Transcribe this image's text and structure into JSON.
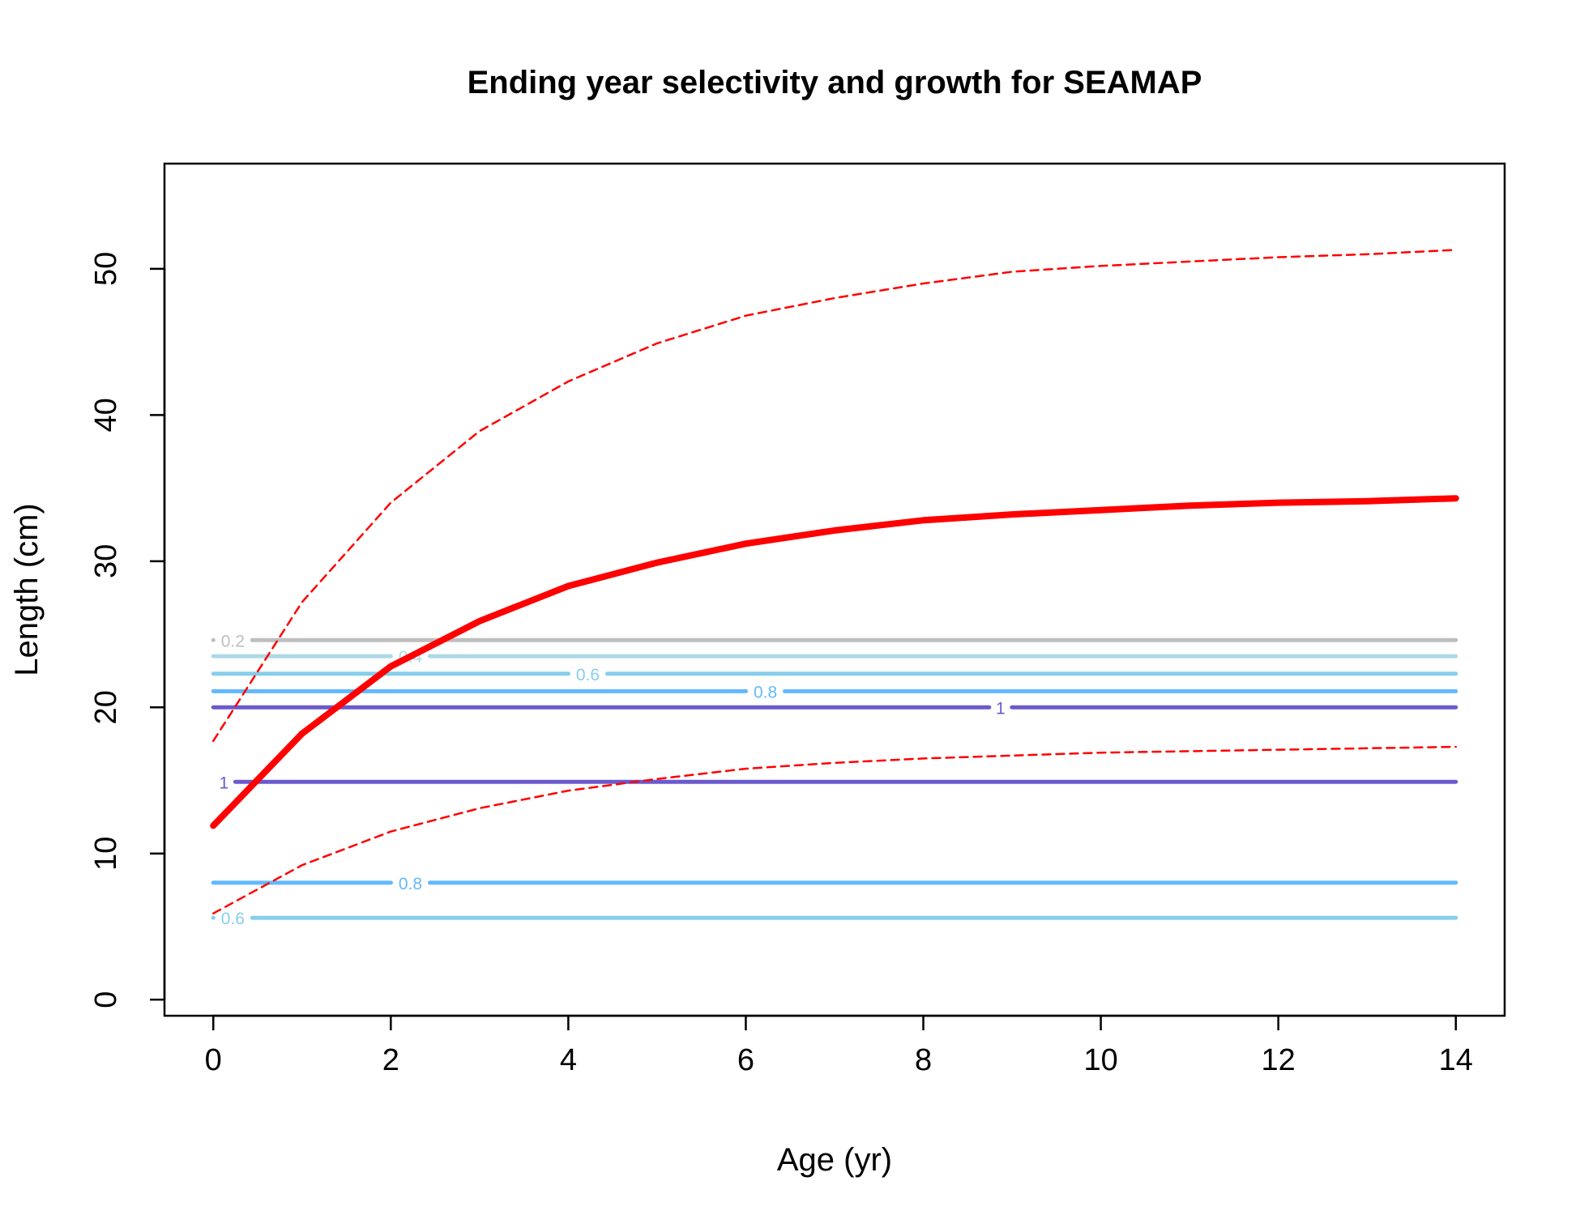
{
  "chart_data": {
    "type": "line",
    "title": "Ending year selectivity and growth for SEAMAP",
    "xlabel": "Age (yr)",
    "ylabel": "Length (cm)",
    "xlim": [
      -0.55,
      14.55
    ],
    "ylim": [
      -1.1,
      57.2
    ],
    "xticks": [
      0,
      2,
      4,
      6,
      8,
      10,
      12,
      14
    ],
    "yticks": [
      0,
      10,
      20,
      30,
      40,
      50
    ],
    "grid": false,
    "legend": "none",
    "series": [
      {
        "style": "solid-thick",
        "color": "#ff0000",
        "x": [
          0,
          1,
          2,
          3,
          4,
          5,
          6,
          7,
          8,
          9,
          10,
          11,
          12,
          13,
          14
        ],
        "y": [
          11.9,
          18.2,
          22.8,
          25.9,
          28.3,
          29.9,
          31.2,
          32.1,
          32.8,
          33.2,
          33.5,
          33.8,
          34.0,
          34.1,
          34.3
        ]
      },
      {
        "style": "dashed",
        "color": "#ff0000",
        "x": [
          0,
          1,
          2,
          3,
          4,
          5,
          6,
          7,
          8,
          9,
          10,
          11,
          12,
          13,
          14
        ],
        "y": [
          17.7,
          27.2,
          34.0,
          38.9,
          42.3,
          44.9,
          46.8,
          48.0,
          49.0,
          49.8,
          50.2,
          50.5,
          50.8,
          51.0,
          51.3
        ]
      },
      {
        "style": "dashed",
        "color": "#ff0000",
        "x": [
          0,
          1,
          2,
          3,
          4,
          5,
          6,
          7,
          8,
          9,
          10,
          11,
          12,
          13,
          14
        ],
        "y": [
          5.9,
          9.2,
          11.5,
          13.1,
          14.3,
          15.1,
          15.8,
          16.2,
          16.5,
          16.7,
          16.9,
          17.0,
          17.1,
          17.2,
          17.3
        ]
      }
    ],
    "contours": [
      {
        "level": "0.2",
        "y": 24.6,
        "color": "#bebebe",
        "label_x": 0.22
      },
      {
        "level": "0.4",
        "y": 23.5,
        "color": "#add8e6",
        "label_x": 2.22
      },
      {
        "level": "0.6",
        "y": 22.3,
        "color": "#87ceeb",
        "label_x": 4.22
      },
      {
        "level": "0.8",
        "y": 21.1,
        "color": "#63b8ff",
        "label_x": 6.22
      },
      {
        "level": "1",
        "y": 20.0,
        "color": "#6a5acd",
        "label_x": 8.87
      },
      {
        "level": "1",
        "y": 14.9,
        "color": "#6a5acd",
        "label_x": 0.12
      },
      {
        "level": "0.8",
        "y": 8.0,
        "color": "#63b8ff",
        "label_x": 2.22
      },
      {
        "level": "0.6",
        "y": 5.6,
        "color": "#87ceeb",
        "label_x": 0.22
      }
    ]
  }
}
